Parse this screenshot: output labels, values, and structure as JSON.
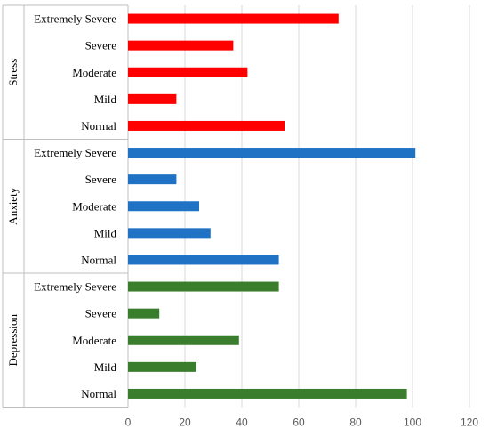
{
  "chart_data": {
    "type": "bar",
    "orientation": "horizontal",
    "title": "",
    "xlabel": "",
    "ylabel": "",
    "xlim": [
      0,
      120
    ],
    "xticks": [
      0,
      20,
      40,
      60,
      80,
      100,
      120
    ],
    "grid": true,
    "legend": "none",
    "groups": [
      {
        "name": "Stress",
        "color": "#ff0000",
        "categories": [
          "Extremely Severe",
          "Severe",
          "Moderate",
          "Mild",
          "Normal"
        ],
        "values": [
          74,
          37,
          42,
          17,
          55
        ]
      },
      {
        "name": "Anxiety",
        "color": "#1f72c4",
        "categories": [
          "Extremely Severe",
          "Severe",
          "Moderate",
          "Mild",
          "Normal"
        ],
        "values": [
          101,
          17,
          25,
          29,
          53
        ]
      },
      {
        "name": "Depression",
        "color": "#3a7d2c",
        "categories": [
          "Extremely Severe",
          "Severe",
          "Moderate",
          "Mild",
          "Normal"
        ],
        "values": [
          53,
          11,
          39,
          24,
          98
        ]
      }
    ]
  }
}
